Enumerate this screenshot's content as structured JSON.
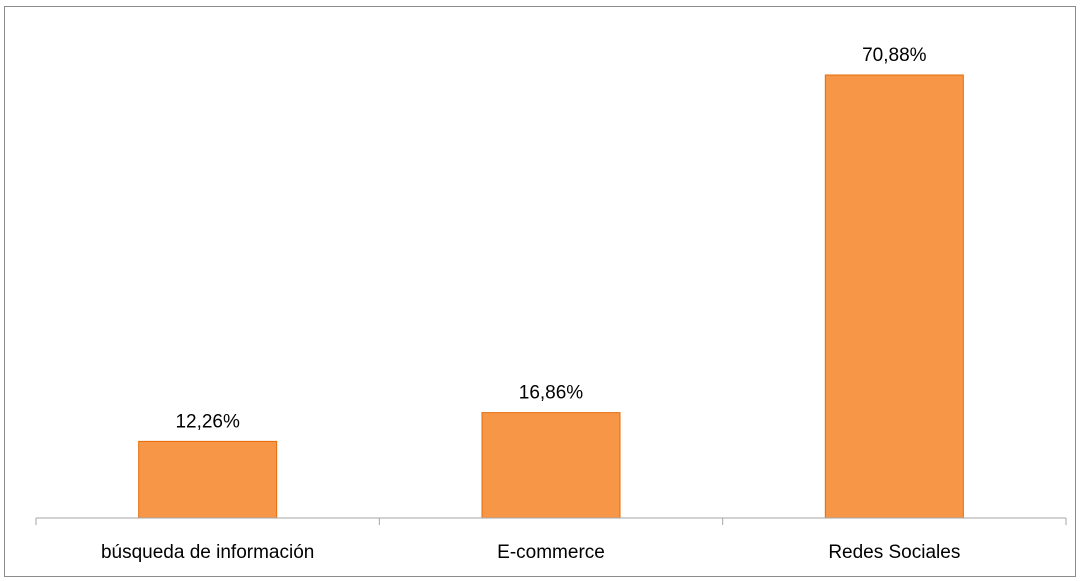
{
  "chart_data": {
    "type": "bar",
    "categories": [
      "búsqueda de información",
      "E-commerce",
      "Redes Sociales"
    ],
    "values": [
      12.26,
      16.86,
      70.88
    ],
    "data_labels": [
      "12,26%",
      "16,86%",
      "70,88%"
    ],
    "ylim": [
      0,
      80
    ],
    "grid": false,
    "legend": "none",
    "bar_color": "#f79646",
    "bar_edge_color": "#e46c0a",
    "axis_color": "#a6a6a6"
  }
}
